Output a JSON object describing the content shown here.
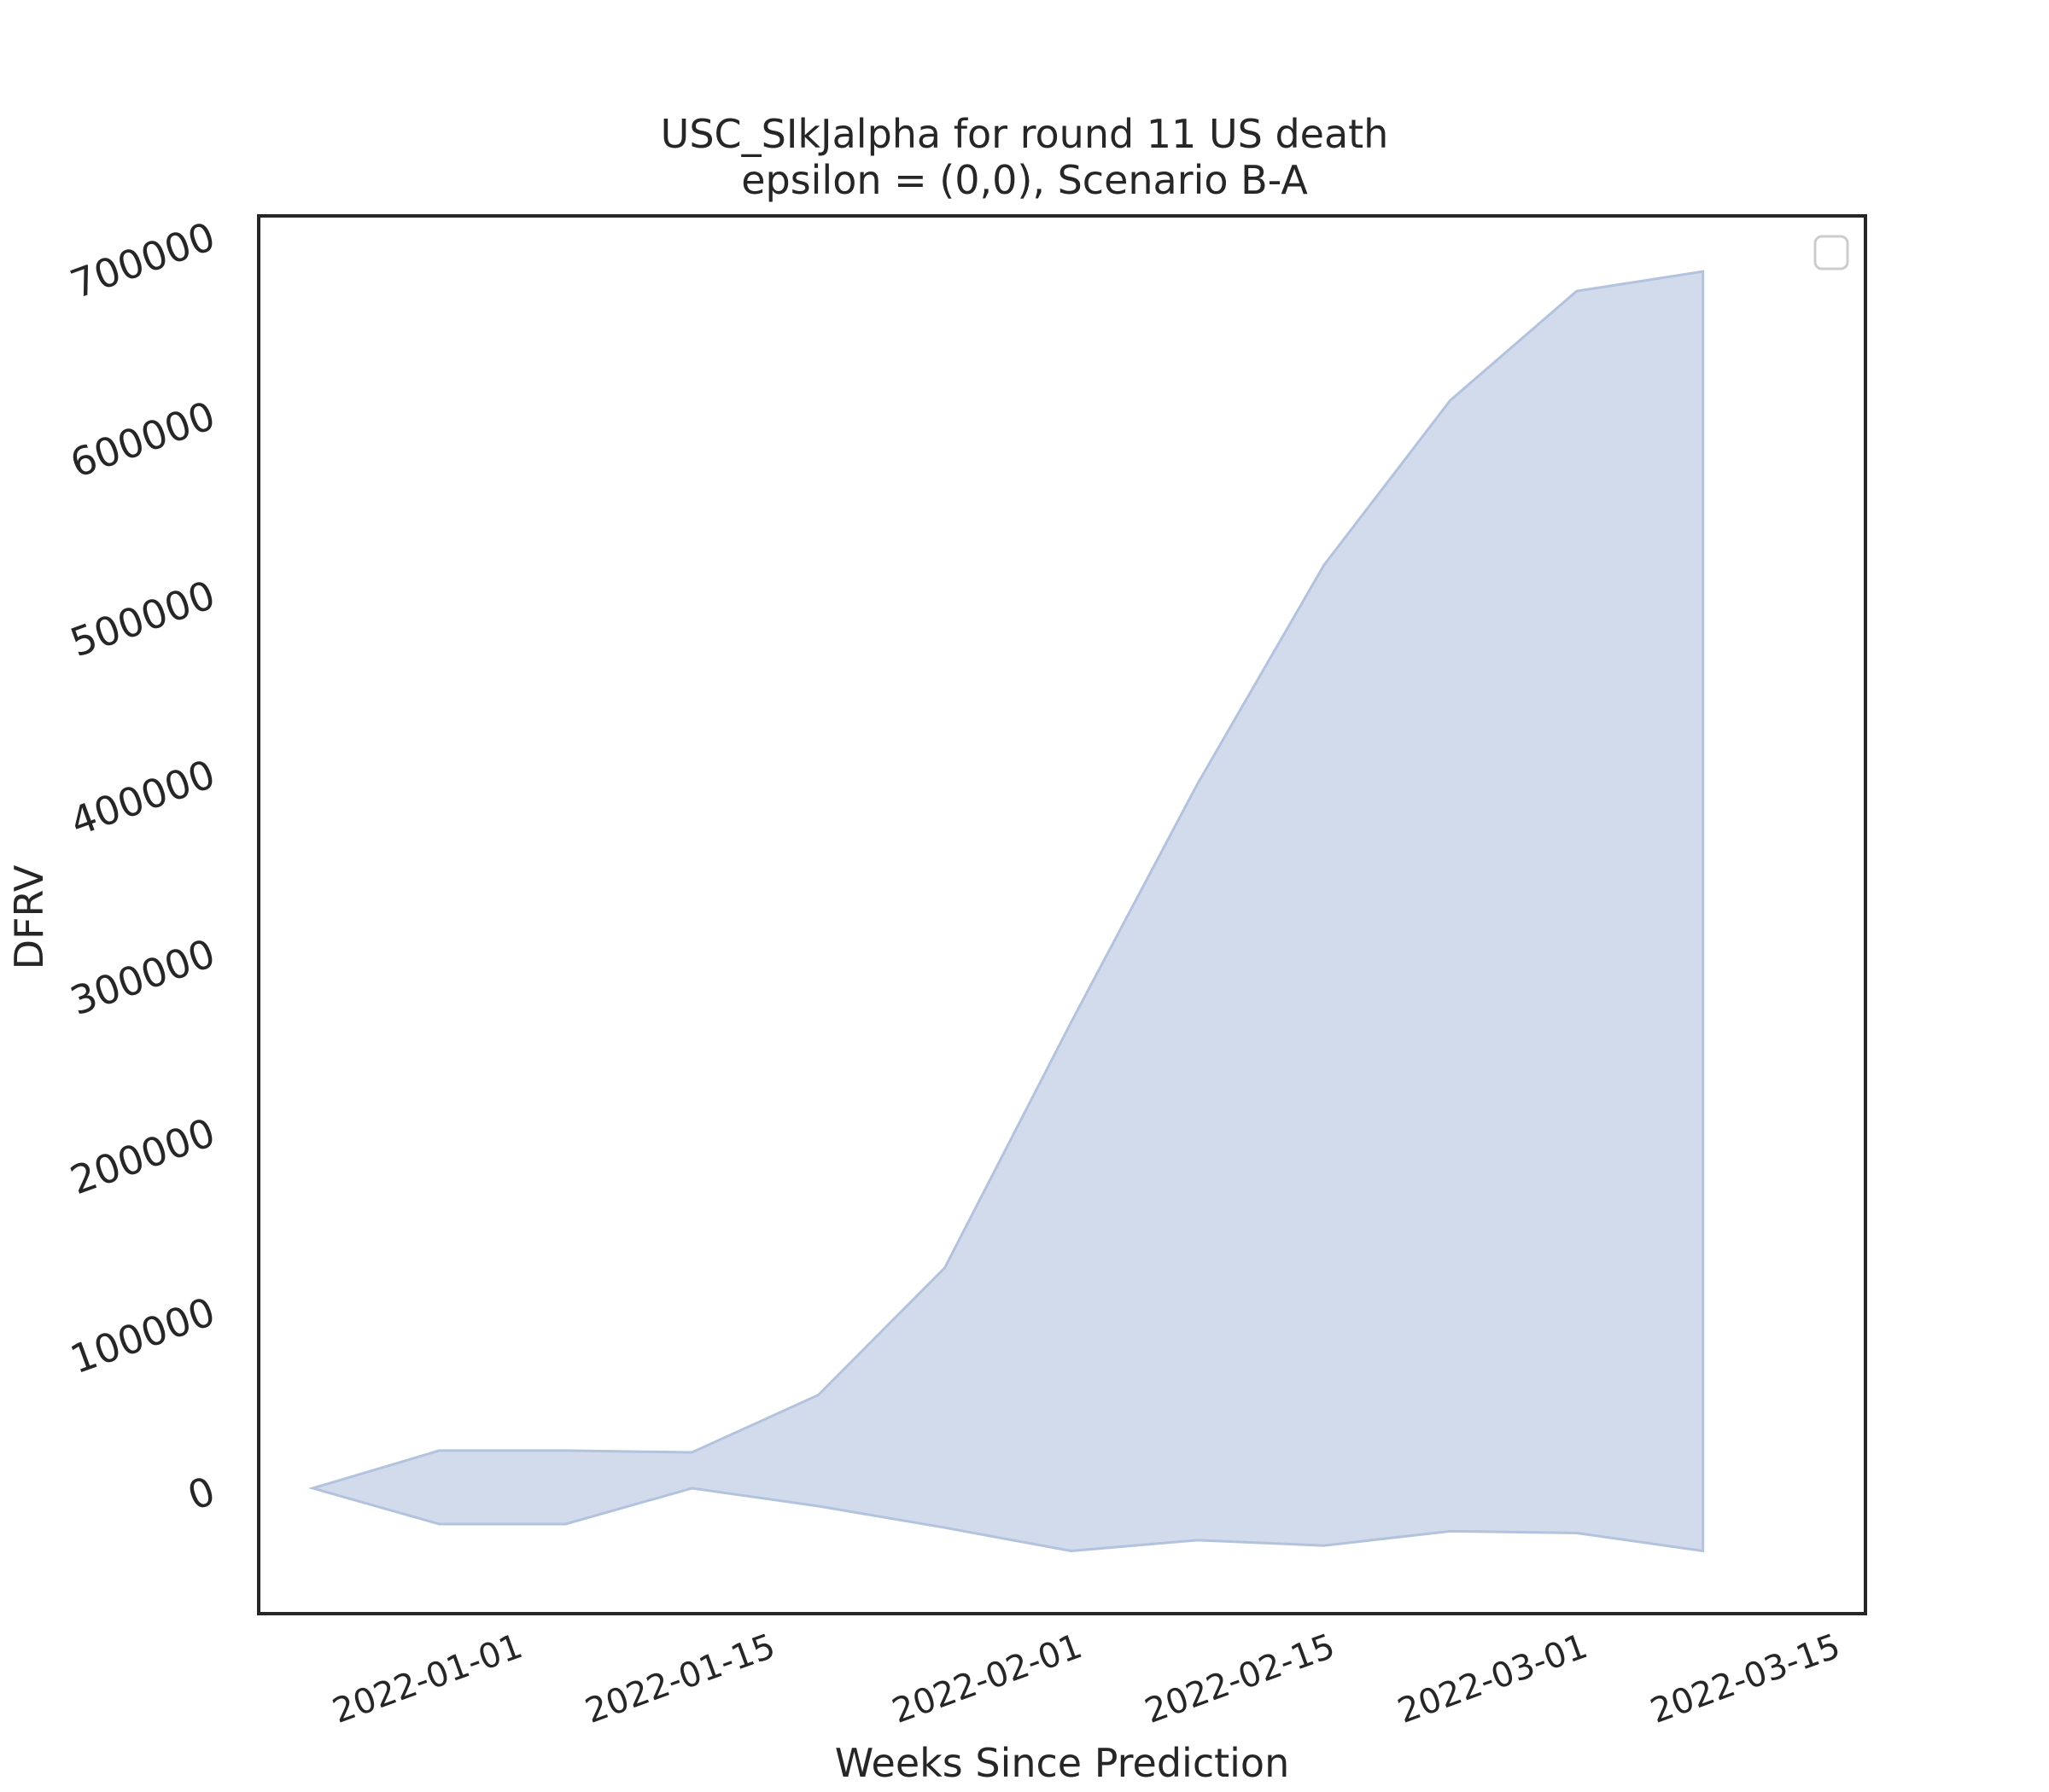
{
  "chart_data": {
    "type": "area",
    "title": "USC_SIkJalpha for round 11 US death",
    "subtitle": "epsilon = (0,0), Scenario B-A",
    "xlabel": "Weeks Since Prediction",
    "ylabel": "DFRV",
    "x": [
      "2021-12-25",
      "2022-01-01",
      "2022-01-08",
      "2022-01-15",
      "2022-01-22",
      "2022-01-29",
      "2022-02-05",
      "2022-02-12",
      "2022-02-19",
      "2022-02-26",
      "2022-03-05",
      "2022-03-12"
    ],
    "series": [
      {
        "lower": [
          0,
          -20000,
          -20000,
          0,
          -10000,
          -22000,
          -35000,
          -29000,
          -32000,
          -24000,
          -25000,
          -35000
        ],
        "upper": [
          0,
          21000,
          21000,
          20000,
          52000,
          123000,
          260000,
          393000,
          515000,
          607000,
          668000,
          679000
        ]
      }
    ],
    "ylim": [
      -70000,
      710000
    ],
    "xlim": [
      "2021-12-22",
      "2022-03-21"
    ],
    "yticks": [
      0,
      100000,
      200000,
      300000,
      400000,
      500000,
      600000,
      700000
    ],
    "ytick_labels": [
      "0",
      "100000",
      "200000",
      "300000",
      "400000",
      "500000",
      "600000",
      "700000"
    ],
    "xticks": [
      "2022-01-01",
      "2022-01-15",
      "2022-02-01",
      "2022-02-15",
      "2022-03-01",
      "2022-03-15"
    ],
    "xtick_labels": [
      "2022-01-01",
      "2022-01-15",
      "2022-02-01",
      "2022-02-15",
      "2022-03-01",
      "2022-03-15"
    ],
    "grid": false,
    "legend": "top-right (empty)",
    "colors": {
      "fill": "#d1dbeb",
      "edge": "#b3c3de",
      "frame": "#262626"
    }
  }
}
